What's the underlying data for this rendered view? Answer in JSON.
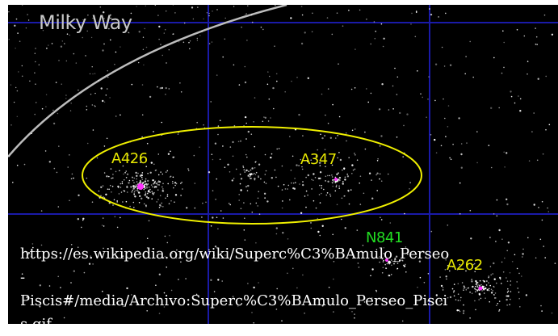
{
  "map": {
    "region_label": "Milky Way",
    "cluster_labels": [
      {
        "id": "a426",
        "text": "A426",
        "color": "#e8e800"
      },
      {
        "id": "a347",
        "text": "A347",
        "color": "#e8e800"
      },
      {
        "id": "n841",
        "text": "N841",
        "color": "#22dd22"
      },
      {
        "id": "a262",
        "text": "A262",
        "color": "#e8e800"
      }
    ],
    "colors": {
      "background": "#000000",
      "grid": "#1a1aa8",
      "ellipse": "#f0f000",
      "galaxy_core": "#ff33ff",
      "milky_way_arc": "#bdbdbd"
    }
  },
  "caption": {
    "line1": "https://es.wikipedia.org/wiki/Superc%C3%BAmulo_Perseo",
    "line2": "-",
    "line3": "Piscis#/media/Archivo:Superc%C3%BAmulo_Perseo_Pisci",
    "line4": "s.gif"
  }
}
